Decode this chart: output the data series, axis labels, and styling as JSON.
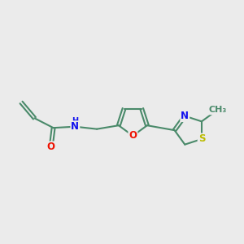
{
  "bg_color": "#ebebeb",
  "bond_color": "#4a8a6a",
  "bond_width": 1.5,
  "atom_colors": {
    "O": "#ee1100",
    "N": "#1111ee",
    "S": "#bbbb00",
    "C": "#4a8a6a"
  },
  "font_size": 8.5,
  "fig_size": [
    3.0,
    3.0
  ],
  "dpi": 100
}
